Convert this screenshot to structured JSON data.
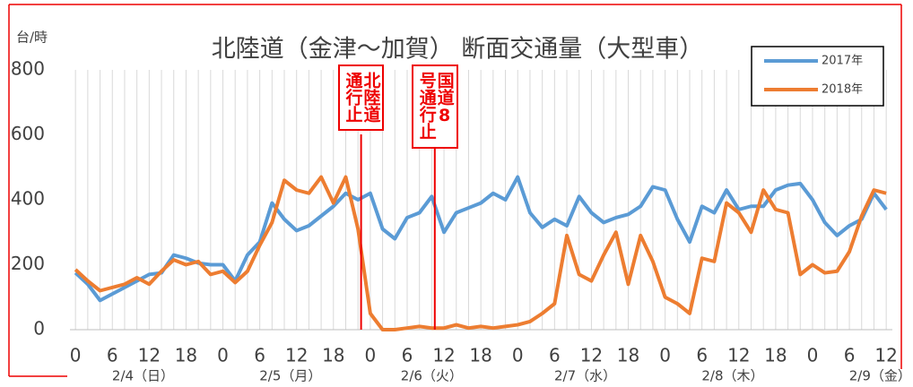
{
  "chart_data": {
    "type": "line",
    "title": "北陸道（金津〜加賀） 断面交通量（大型車）",
    "y_unit": "台/時",
    "x": [
      0,
      2,
      4,
      6,
      8,
      10,
      12,
      14,
      16,
      18,
      20,
      22,
      24,
      26,
      28,
      30,
      32,
      34,
      36,
      38,
      40,
      42,
      44,
      46,
      48,
      50,
      52,
      54,
      56,
      58,
      60,
      62,
      64,
      66,
      68,
      70,
      72,
      74,
      76,
      78,
      80,
      82,
      84,
      86,
      88,
      90,
      92,
      94,
      96,
      98,
      100,
      102,
      104,
      106,
      108,
      110,
      112,
      114,
      116,
      118,
      120,
      122,
      124,
      126,
      128,
      130,
      132
    ],
    "series": [
      {
        "name": "2017年",
        "color": "#5b9bd5",
        "values": [
          175,
          140,
          90,
          110,
          130,
          150,
          170,
          175,
          230,
          220,
          205,
          200,
          200,
          150,
          230,
          270,
          390,
          340,
          305,
          320,
          350,
          380,
          420,
          400,
          420,
          310,
          280,
          345,
          360,
          410,
          300,
          360,
          375,
          390,
          420,
          400,
          470,
          360,
          315,
          340,
          320,
          410,
          360,
          330,
          345,
          355,
          380,
          440,
          430,
          340,
          270,
          380,
          360,
          430,
          370,
          380,
          380,
          430,
          445,
          450,
          400,
          330,
          290,
          320,
          340,
          420,
          370
        ]
      },
      {
        "name": "2018年",
        "color": "#ed7d31",
        "values": [
          185,
          150,
          120,
          130,
          140,
          160,
          140,
          180,
          215,
          200,
          210,
          170,
          180,
          145,
          180,
          260,
          330,
          460,
          430,
          420,
          470,
          390,
          470,
          310,
          50,
          0,
          0,
          5,
          10,
          5,
          5,
          15,
          5,
          10,
          5,
          10,
          15,
          25,
          50,
          80,
          290,
          170,
          150,
          230,
          300,
          140,
          290,
          210,
          100,
          80,
          50,
          220,
          210,
          390,
          360,
          300,
          430,
          370,
          360,
          170,
          200,
          175,
          180,
          240,
          350,
          430,
          420
        ]
      }
    ],
    "xlim": [
      -0.9,
      133
    ],
    "xticks": [
      0,
      6,
      12,
      18,
      {
        "value": 24,
        "label": "0"
      },
      {
        "value": 30,
        "label": "6"
      },
      {
        "value": 36,
        "label": "12"
      },
      {
        "value": 42,
        "label": "18"
      },
      {
        "value": 48,
        "label": "0"
      },
      {
        "value": 54,
        "label": "6"
      },
      {
        "value": 60,
        "label": "12"
      },
      {
        "value": 66,
        "label": "18"
      },
      {
        "value": 72,
        "label": "0"
      },
      {
        "value": 78,
        "label": "6"
      },
      {
        "value": 84,
        "label": "12"
      },
      {
        "value": 90,
        "label": "18"
      },
      {
        "value": 96,
        "label": "0"
      },
      {
        "value": 102,
        "label": "6"
      },
      {
        "value": 108,
        "label": "12"
      },
      {
        "value": 114,
        "label": "18"
      },
      {
        "value": 120,
        "label": "0"
      },
      {
        "value": 126,
        "label": "6"
      },
      {
        "value": 132,
        "label": "12"
      }
    ],
    "date_labels": [
      {
        "value": 11,
        "label": "2/4（日）"
      },
      {
        "value": 35,
        "label": "2/5（月）"
      },
      {
        "value": 58,
        "label": "2/6（火）"
      },
      {
        "value": 83,
        "label": "2/7（水）"
      },
      {
        "value": 107,
        "label": "2/8（木）"
      },
      {
        "value": 131,
        "label": "2/9（金）"
      }
    ],
    "ylim": [
      0,
      800
    ],
    "yticks": [
      0,
      200,
      400,
      600,
      800
    ],
    "grid": true,
    "annotations": [
      {
        "text": "北陸道通行止",
        "x": 46.5
      },
      {
        "text": "国道8号通行止",
        "x": 58.5
      }
    ]
  }
}
